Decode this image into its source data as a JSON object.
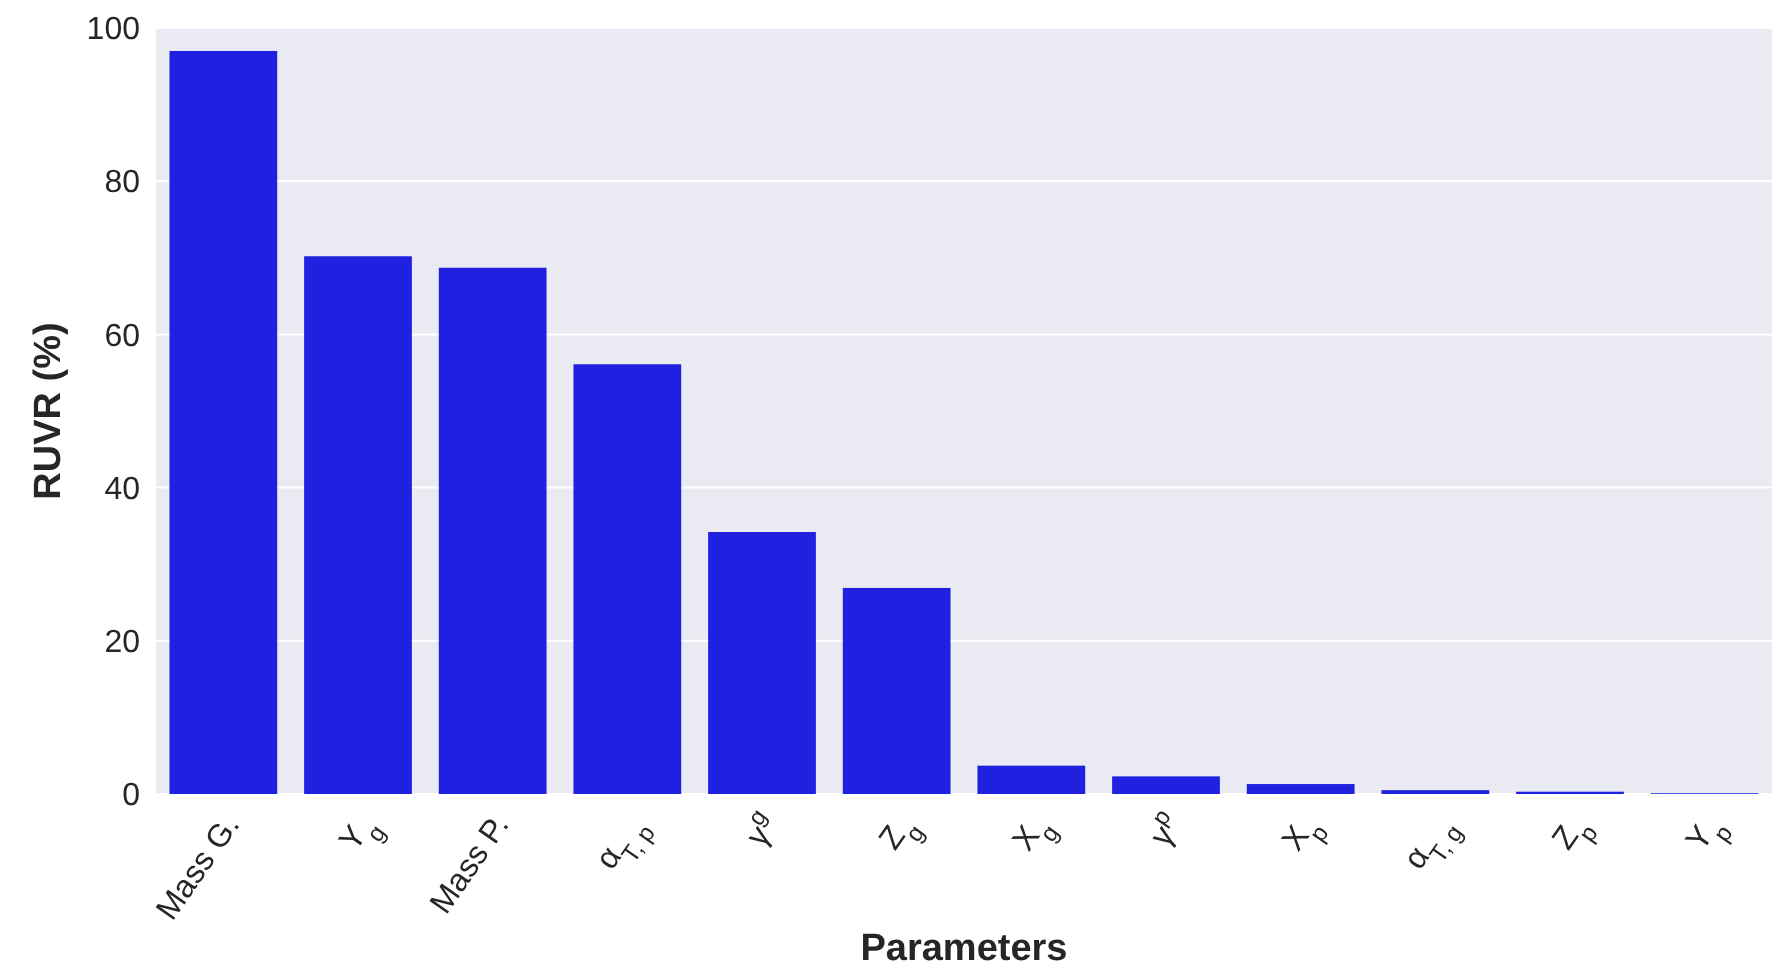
{
  "chart_data": {
    "type": "bar",
    "xlabel": "Parameters",
    "ylabel": "RUVR (%)",
    "categories": [
      "Mass G.",
      "Y$_{g}$",
      "Mass P.",
      "α$_{T, p}$",
      "γ$^{g}$",
      "Z$_{g}$",
      "X$_{g}$",
      "γ$^{p}$",
      "X$_{p}$",
      "α$_{T, g}$",
      "Z$_{p}$",
      "Y$_{p}$"
    ],
    "values": [
      97,
      70.2,
      68.7,
      56.1,
      34.2,
      26.9,
      3.7,
      2.3,
      1.3,
      0.5,
      0.3,
      0.1
    ],
    "color": "#2020e0",
    "ylim": [
      0,
      100
    ],
    "yticks": [
      0,
      20,
      40,
      60,
      80,
      100
    ],
    "grid": "y"
  }
}
